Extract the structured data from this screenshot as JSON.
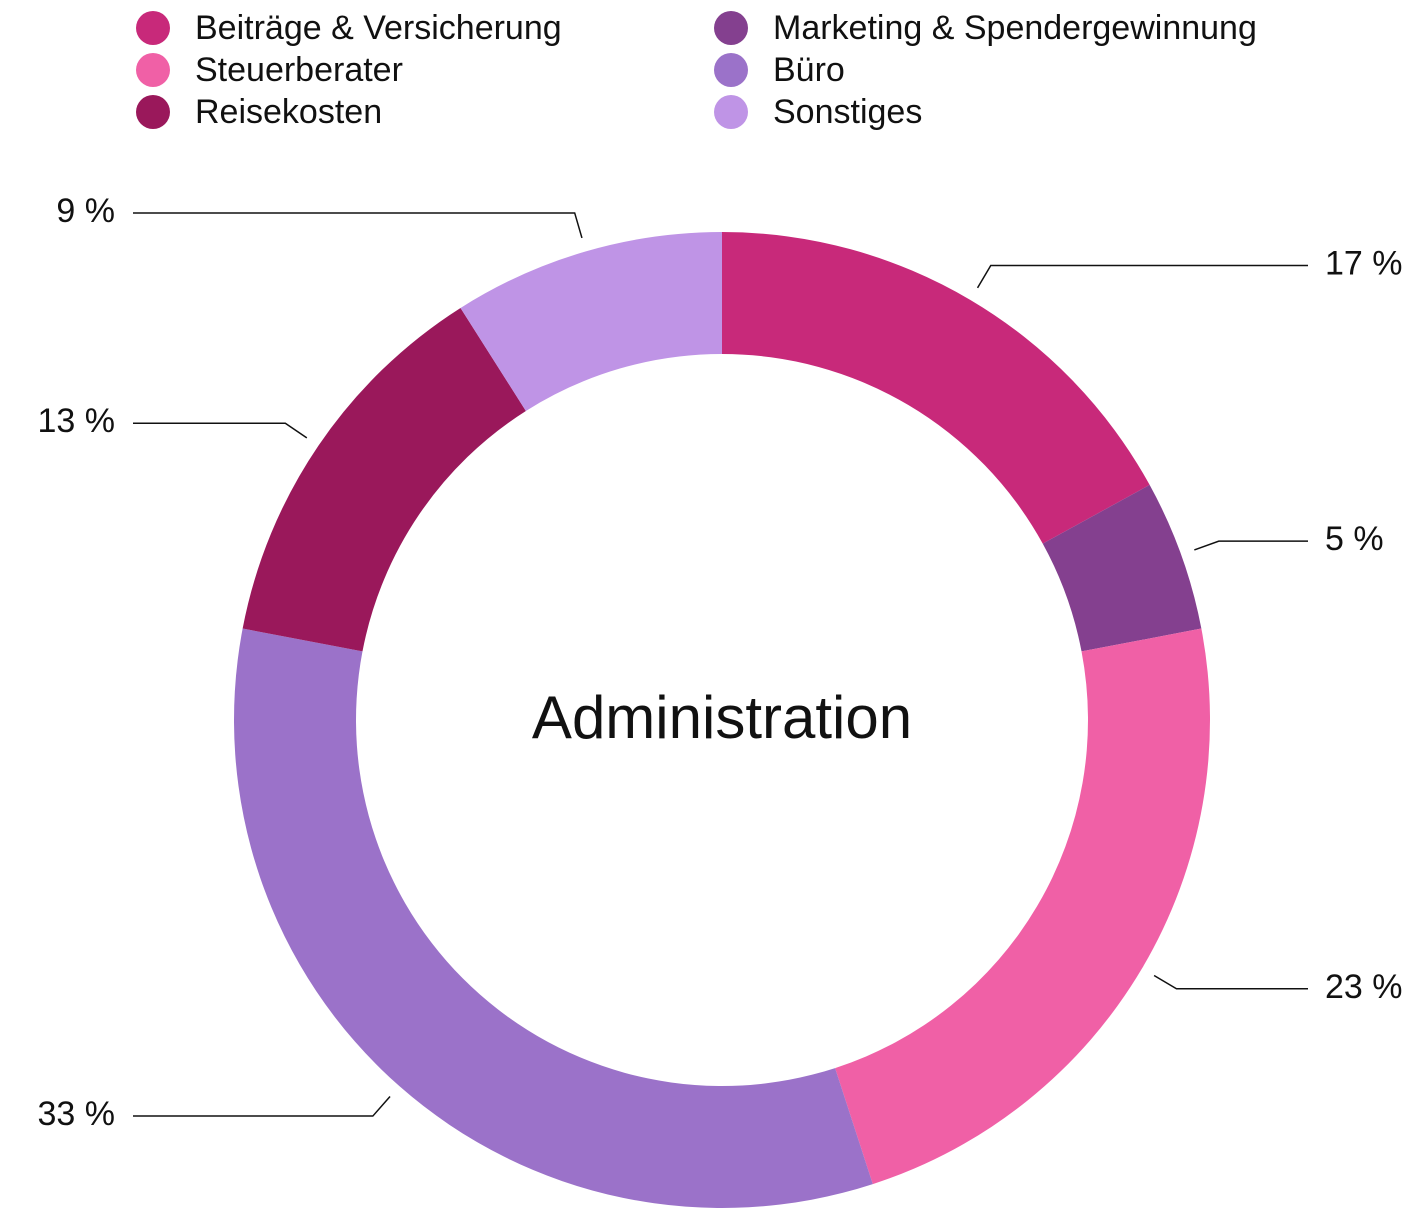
{
  "chart_data": {
    "type": "donut",
    "title": "Administration",
    "categories": [
      "Beiträge & Versicherung",
      "Marketing & Spendergewinnung",
      "Steuerberater",
      "Büro",
      "Reisekosten",
      "Sonstiges"
    ],
    "values": [
      17,
      5,
      23,
      33,
      13,
      9
    ],
    "value_labels": [
      "17 %",
      "5 %",
      "23 %",
      "33 %",
      "13 %",
      "9 %"
    ],
    "colors": [
      "#c8297a",
      "#84408f",
      "#f060a6",
      "#9b72c9",
      "#9a185b",
      "#bf94e6"
    ],
    "legend": "top"
  }
}
